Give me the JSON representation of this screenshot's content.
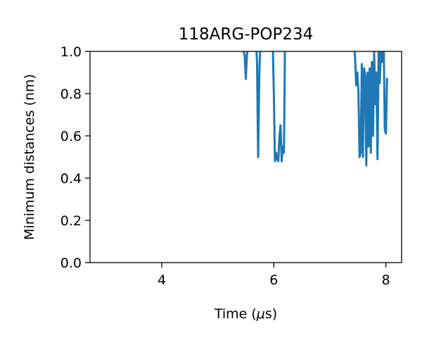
{
  "chart_data": {
    "type": "line",
    "title": "118ARG-POP234",
    "xlabel_prefix": "Time (",
    "xlabel_mu": "μ",
    "xlabel_suffix": "s)",
    "ylabel": "Minimum distances (nm)",
    "xlim": [
      2.72,
      8.28
    ],
    "ylim": [
      0.0,
      1.0
    ],
    "xticks": [
      4,
      6,
      8
    ],
    "xtick_labels": [
      "4",
      "6",
      "8"
    ],
    "yticks": [
      0.0,
      0.2,
      0.4,
      0.6,
      0.8,
      1.0
    ],
    "ytick_labels": [
      "0.0",
      "0.2",
      "0.4",
      "0.6",
      "0.8",
      "1.0"
    ],
    "grid": false,
    "series": [
      {
        "color": "#1f77b4",
        "segments": [
          [
            [
              5.44,
              1.05
            ],
            [
              5.46,
              1.0
            ],
            [
              5.48,
              0.98
            ],
            [
              5.5,
              0.87
            ],
            [
              5.52,
              0.98
            ],
            [
              5.54,
              1.05
            ]
          ],
          [
            [
              5.68,
              1.05
            ],
            [
              5.7,
              0.95
            ],
            [
              5.72,
              0.5
            ],
            [
              5.74,
              0.88
            ],
            [
              5.76,
              1.05
            ]
          ],
          [
            [
              5.98,
              1.05
            ],
            [
              6.0,
              0.8
            ],
            [
              6.02,
              0.48
            ],
            [
              6.04,
              0.52
            ],
            [
              6.06,
              0.49
            ],
            [
              6.08,
              0.48
            ],
            [
              6.1,
              0.6
            ],
            [
              6.12,
              0.65
            ],
            [
              6.14,
              0.48
            ],
            [
              6.16,
              0.55
            ],
            [
              6.18,
              0.52
            ],
            [
              6.2,
              1.05
            ]
          ],
          [
            [
              7.43,
              1.05
            ],
            [
              7.45,
              0.97
            ],
            [
              7.47,
              0.84
            ],
            [
              7.49,
              0.9
            ],
            [
              7.51,
              0.8
            ],
            [
              7.53,
              0.5
            ],
            [
              7.55,
              0.52
            ],
            [
              7.57,
              0.94
            ],
            [
              7.59,
              0.5
            ],
            [
              7.61,
              0.92
            ],
            [
              7.63,
              0.88
            ],
            [
              7.65,
              0.46
            ],
            [
              7.67,
              0.9
            ],
            [
              7.69,
              0.55
            ],
            [
              7.71,
              0.92
            ],
            [
              7.73,
              0.52
            ],
            [
              7.75,
              0.95
            ],
            [
              7.77,
              0.6
            ],
            [
              7.79,
              1.0
            ],
            [
              7.81,
              0.75
            ],
            [
              7.83,
              0.9
            ],
            [
              7.85,
              0.49
            ],
            [
              7.87,
              1.0
            ],
            [
              7.89,
              0.85
            ],
            [
              7.91,
              1.0
            ],
            [
              7.93,
              0.95
            ],
            [
              7.95,
              1.05
            ]
          ],
          [
            [
              7.96,
              1.05
            ],
            [
              7.98,
              0.63
            ],
            [
              8.0,
              0.61
            ],
            [
              8.02,
              0.87
            ]
          ]
        ]
      }
    ]
  }
}
